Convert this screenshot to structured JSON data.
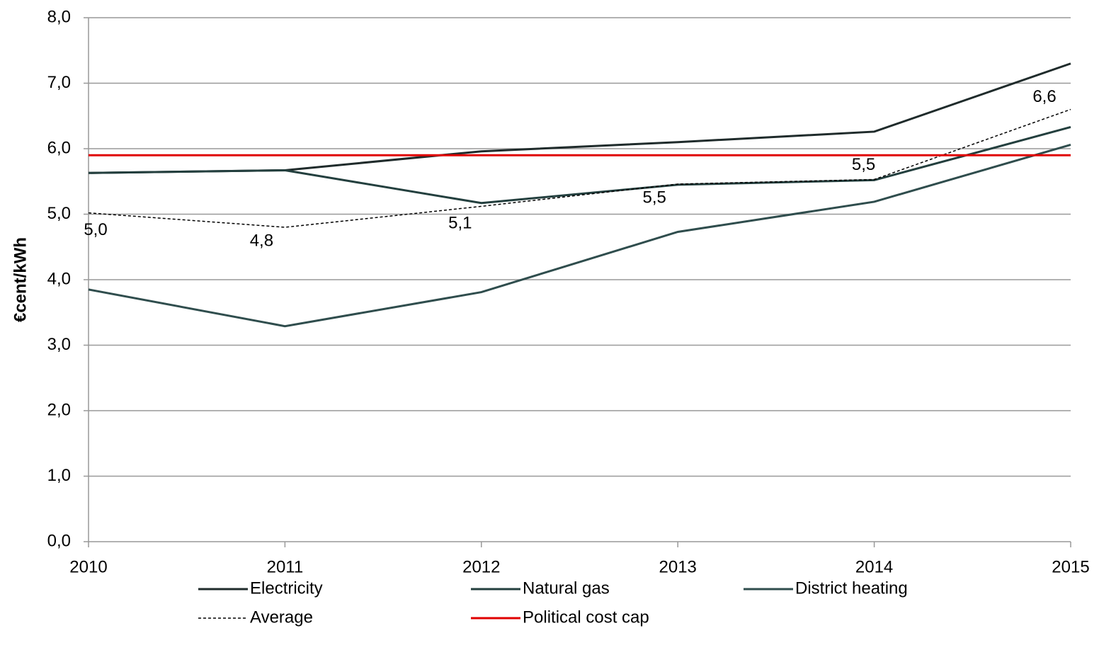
{
  "chart_data": {
    "type": "line",
    "y_label": "€cent/kWh",
    "categories": [
      "2010",
      "2011",
      "2012",
      "2013",
      "2014",
      "2015"
    ],
    "ylim": [
      0,
      8
    ],
    "yticks": [
      {
        "value": 0,
        "label": "0,0"
      },
      {
        "value": 1,
        "label": "1,0"
      },
      {
        "value": 2,
        "label": "2,0"
      },
      {
        "value": 3,
        "label": "3,0"
      },
      {
        "value": 4,
        "label": "4,0"
      },
      {
        "value": 5,
        "label": "5,0"
      },
      {
        "value": 6,
        "label": "6,0"
      },
      {
        "value": 7,
        "label": "7,0"
      },
      {
        "value": 8,
        "label": "8,0"
      }
    ],
    "grid": true,
    "series": [
      {
        "name": "Electricity",
        "color": "#1f2b2b",
        "values": [
          5.63,
          5.67,
          5.96,
          6.1,
          6.26,
          7.3
        ]
      },
      {
        "name": "Natural gas",
        "color": "#233f3e",
        "values": [
          5.63,
          5.67,
          5.17,
          5.45,
          5.52,
          6.33
        ]
      },
      {
        "name": "District heating",
        "color": "#2f4d4d",
        "values": [
          3.85,
          3.29,
          3.81,
          4.73,
          5.19,
          6.06
        ]
      },
      {
        "name": "Average",
        "color": "#000000",
        "dashed": true,
        "values": [
          5.02,
          4.8,
          5.12,
          5.46,
          5.53,
          6.6
        ],
        "value_labels": [
          "5,0",
          "4,8",
          "5,1",
          "5,5",
          "5,5",
          "6,6"
        ]
      },
      {
        "name": "Political cost cap",
        "color": "#e00000",
        "values": [
          5.9,
          5.9,
          5.9,
          5.9,
          5.9,
          5.9
        ]
      }
    ]
  }
}
